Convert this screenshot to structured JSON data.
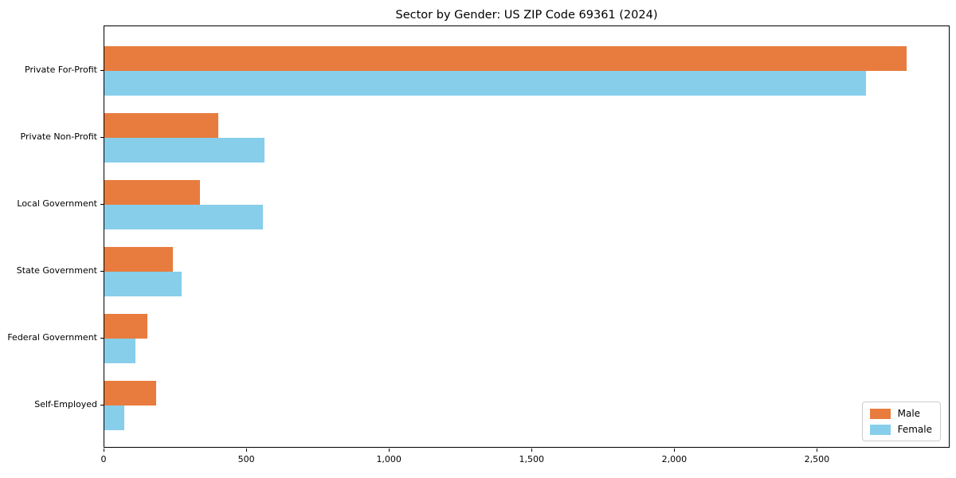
{
  "title": "Sector by Gender: US ZIP Code 69361 (2024)",
  "chart_data": {
    "type": "bar",
    "orientation": "horizontal",
    "title": "Sector by Gender: US ZIP Code 69361 (2024)",
    "categories": [
      "Private For-Profit",
      "Private Non-Profit",
      "Local Government",
      "State Government",
      "Federal Government",
      "Self-Employed"
    ],
    "series": [
      {
        "name": "Male",
        "color": "#E87C3E",
        "values": [
          2810,
          400,
          335,
          240,
          150,
          180
        ]
      },
      {
        "name": "Female",
        "color": "#87CEEB",
        "values": [
          2670,
          560,
          555,
          270,
          110,
          70
        ]
      }
    ],
    "xlabel": "",
    "ylabel": "",
    "xlim": [
      0,
      2965
    ],
    "xticks": [
      0,
      500,
      1000,
      1500,
      2000,
      2500
    ],
    "xtick_labels": [
      "0",
      "500",
      "1,000",
      "1,500",
      "2,000",
      "2,500"
    ],
    "grid": false,
    "background": "#ffffff",
    "legend": {
      "position": "lower right",
      "entries": [
        "Male",
        "Female"
      ]
    }
  }
}
